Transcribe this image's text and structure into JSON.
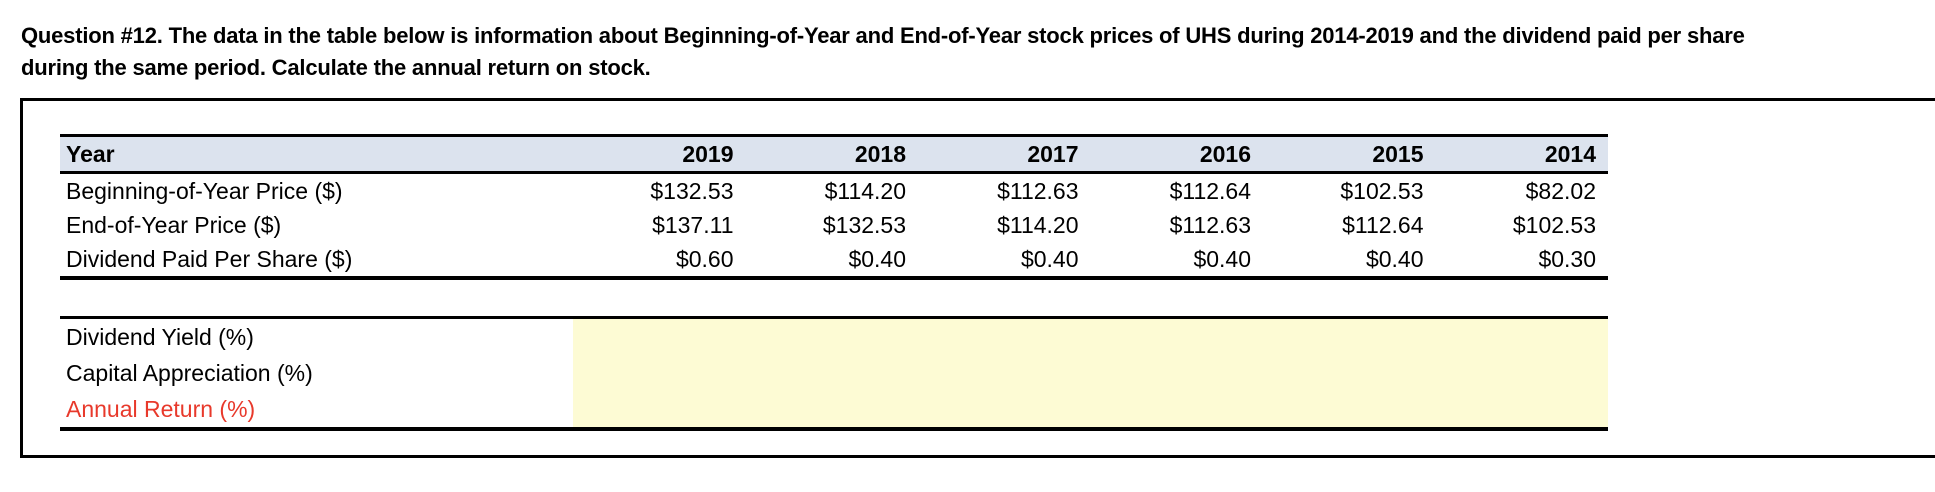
{
  "title": {
    "line1": "Question #12. The data in the table below is information about Beginning-of-Year and End-of-Year stock prices of UHS during 2014-2019 and the dividend paid per share",
    "line2": "during the same period. Calculate the annual return on stock."
  },
  "table": {
    "header": {
      "label": "Year",
      "years": [
        "2019",
        "2018",
        "2017",
        "2016",
        "2015",
        "2014"
      ]
    },
    "rows": [
      {
        "label": "Beginning-of-Year Price ($)",
        "values": [
          "$132.53",
          "$114.20",
          "$112.63",
          "$112.64",
          "$102.53",
          "$82.02"
        ]
      },
      {
        "label": "End-of-Year Price ($)",
        "values": [
          "$137.11",
          "$132.53",
          "$114.20",
          "$112.63",
          "$112.64",
          "$102.53"
        ]
      },
      {
        "label": "Dividend Paid Per Share ($)",
        "values": [
          "$0.60",
          "$0.40",
          "$0.40",
          "$0.40",
          "$0.40",
          "$0.30"
        ]
      }
    ]
  },
  "answer_section": {
    "rows": [
      {
        "label": "Dividend Yield (%)"
      },
      {
        "label": "Capital Appreciation (%)"
      },
      {
        "label": "Annual Return (%)"
      }
    ]
  },
  "colors": {
    "headerBg": "#DCE3EE",
    "highlight": "#FDFBD4",
    "accentRed": "#E8392B",
    "border": "#000000"
  }
}
